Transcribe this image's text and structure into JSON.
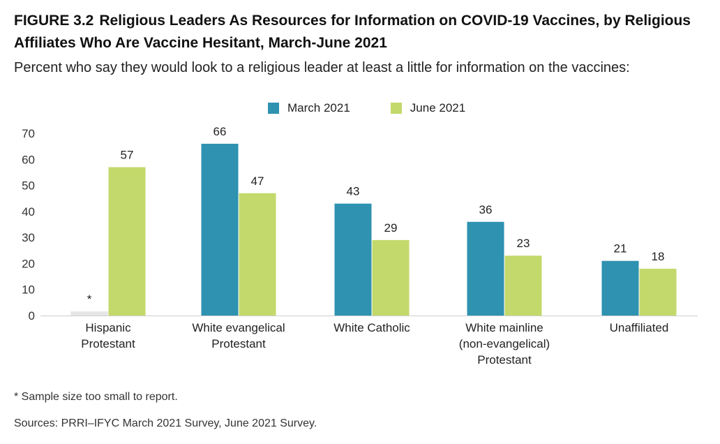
{
  "figure": {
    "number": "FIGURE 3.2",
    "title": "Religious Leaders As Resources for Information on COVID-19 Vaccines, by Religious Affiliates Who Are Vaccine Hesitant, March-June 2021",
    "subtitle": "Percent who say they would look to a religious leader at least a little for information on the vaccines:"
  },
  "chart_data": {
    "type": "bar",
    "categories": [
      [
        "Hispanic",
        "Protestant"
      ],
      [
        "White evangelical",
        "Protestant"
      ],
      [
        "White Catholic"
      ],
      [
        "White mainline",
        "(non-evangelical)",
        "Protestant"
      ],
      [
        "Unaffiliated"
      ]
    ],
    "series": [
      {
        "name": "March 2021",
        "color": "#2e92b0",
        "values": [
          null,
          66,
          43,
          36,
          21
        ],
        "labels": [
          "*",
          "66",
          "43",
          "36",
          "21"
        ]
      },
      {
        "name": "June 2021",
        "color": "#c3d96b",
        "values": [
          57,
          47,
          29,
          23,
          18
        ],
        "labels": [
          "57",
          "47",
          "29",
          "23",
          "18"
        ]
      }
    ],
    "suppressed_bar_color": "#e6e6e6",
    "y_ticks": [
      "0",
      "10",
      "20",
      "30",
      "40",
      "50",
      "60",
      "70"
    ],
    "ylim": [
      0,
      70
    ],
    "grid": false,
    "legend_position": "top-center"
  },
  "notes": {
    "footnote": "* Sample size too small to report.",
    "source": "Sources: PRRI–IFYC March 2021 Survey, June 2021 Survey."
  }
}
